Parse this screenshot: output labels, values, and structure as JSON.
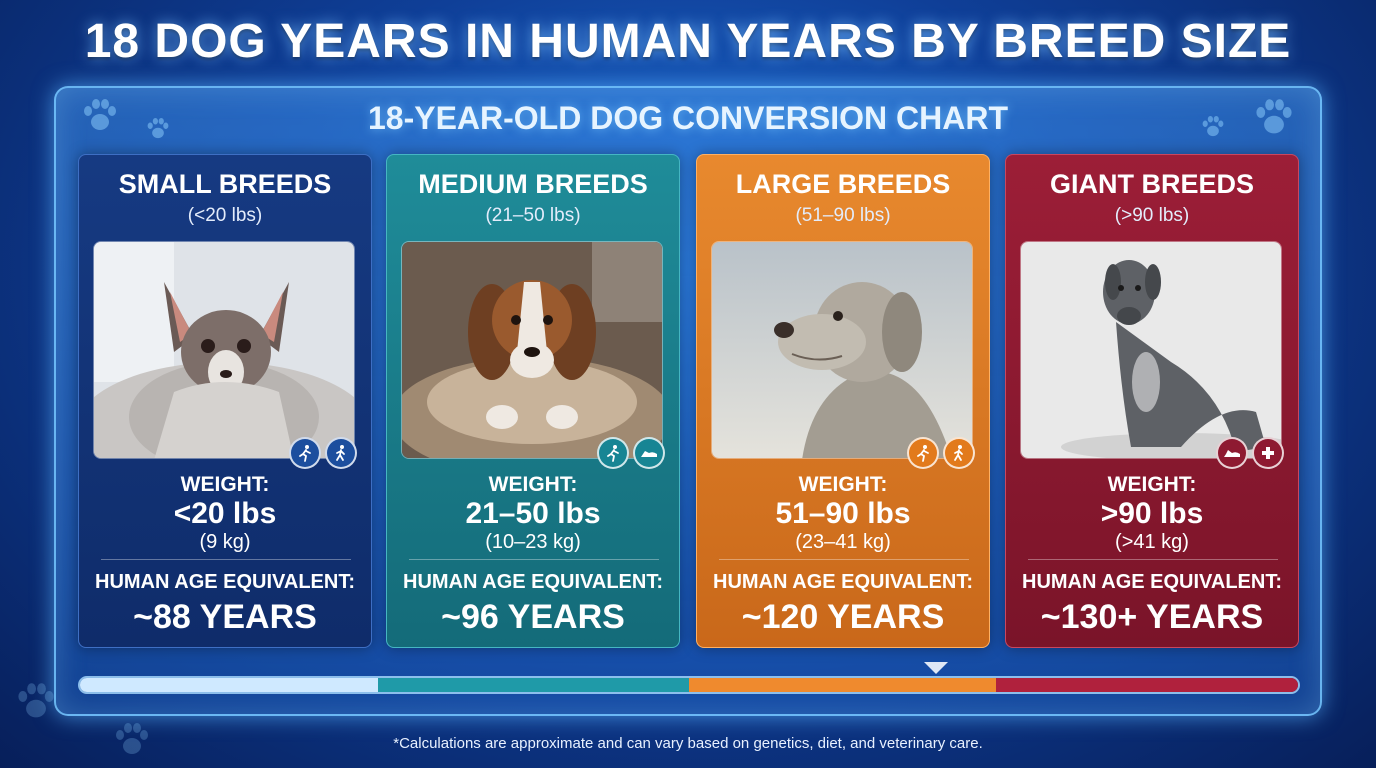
{
  "header": {
    "title": "18 DOG YEARS IN HUMAN YEARS BY BREED SIZE",
    "subtitle": "18-YEAR-OLD DOG CONVERSION CHART"
  },
  "cards": [
    {
      "title": "SMALL BREEDS",
      "range": "(<20 lbs)",
      "weight_label": "WEIGHT:",
      "weight_value": "<20 lbs",
      "weight_kg": "(9 kg)",
      "age_label": "HUMAN AGE EQUIVALENT:",
      "age_value": "~88 YEARS",
      "color": "#163a82",
      "icons": [
        "running-person-icon",
        "walking-person-icon"
      ]
    },
    {
      "title": "MEDIUM BREEDS",
      "range": "(21–50 lbs)",
      "weight_label": "WEIGHT:",
      "weight_value": "21–50 lbs",
      "weight_kg": "(10–23 kg)",
      "age_label": "HUMAN AGE EQUIVALENT:",
      "age_value": "~96 YEARS",
      "color": "#1f8c99",
      "icons": [
        "running-person-icon",
        "resting-dog-icon"
      ]
    },
    {
      "title": "LARGE BREEDS",
      "range": "(51–90 lbs)",
      "weight_label": "WEIGHT:",
      "weight_value": "51–90 lbs",
      "weight_kg": "(23–41 kg)",
      "age_label": "HUMAN AGE EQUIVALENT:",
      "age_value": "~120 YEARS",
      "color": "#e8892e",
      "icons": [
        "running-person-icon",
        "walking-person-icon"
      ]
    },
    {
      "title": "GIANT BREEDS",
      "range": "(>90 lbs)",
      "weight_label": "WEIGHT:",
      "weight_value": ">90 lbs",
      "weight_kg": "(>41 kg)",
      "age_label": "HUMAN AGE EQUIVALENT:",
      "age_value": "~130+ YEARS",
      "color": "#9c1e37",
      "icons": [
        "lying-dog-icon",
        "medical-icon"
      ]
    }
  ],
  "scale_colors": [
    "#cfe9ff",
    "#1f9aa8",
    "#ef8a2e",
    "#b0213d"
  ],
  "footnote": "*Calculations are approximate and can vary based on genetics, diet, and veterinary care."
}
